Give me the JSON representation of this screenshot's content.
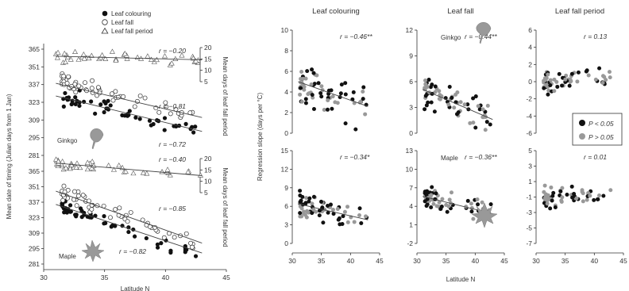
{
  "legend": [
    "Leaf colouring",
    "Leaf fall",
    "Leaf fall period"
  ],
  "sig_legend": [
    "P < 0.05",
    "P > 0.05"
  ],
  "chart_data": [
    {
      "type": "scatter",
      "panel": "left",
      "xlabel": "Latitude N",
      "ylabel": "Mean date of timing (Julian days from 1 Jan)",
      "ylabel_right": "Mean days of leaf fall period",
      "xlim": [
        30,
        45
      ],
      "xticks": [
        30,
        35,
        40,
        45
      ],
      "yticks_left": [
        281,
        295,
        309,
        323,
        337,
        351,
        365
      ],
      "yticks_right": [
        5,
        10,
        15,
        20
      ],
      "groups": [
        {
          "species": "Ginkgo",
          "r_labels": [
            {
              "series": "Leaf fall period",
              "text": "r = −0.20"
            },
            {
              "series": "Leaf fall",
              "text": "r = −0.81"
            },
            {
              "series": "Leaf colouring",
              "text": "r = −0.72"
            }
          ],
          "lines": {
            "Leaf fall period": [
              [
                31,
                16.2
              ],
              [
                43,
                14.6
              ]
            ],
            "Leaf fall": [
              [
                31,
                338
              ],
              [
                43,
                311
              ]
            ],
            "Leaf colouring": [
              [
                31,
                328
              ],
              [
                43,
                300
              ]
            ]
          },
          "series": [
            {
              "name": "Leaf colouring",
              "seed": 11,
              "n": 55,
              "x0": 31.5,
              "x1": 42.5,
              "y0": 328,
              "y1": 300,
              "spread": 7,
              "axis": "left"
            },
            {
              "name": "Leaf fall",
              "seed": 12,
              "n": 55,
              "x0": 31.5,
              "x1": 42.5,
              "y0": 340,
              "y1": 311,
              "spread": 6,
              "axis": "left"
            },
            {
              "name": "Leaf fall period",
              "seed": 13,
              "n": 45,
              "x0": 31,
              "x1": 43,
              "y0": 16.2,
              "y1": 14.6,
              "spread": 2.2,
              "axis": "right"
            }
          ]
        },
        {
          "species": "Maple",
          "r_labels": [
            {
              "series": "Leaf fall period",
              "text": "r = −0.40"
            },
            {
              "series": "Leaf fall",
              "text": "r = −0.85"
            },
            {
              "series": "Leaf colouring",
              "text": "r = −0.82"
            }
          ],
          "lines": {
            "Leaf fall period": [
              [
                31,
                18
              ],
              [
                43,
                12.5
              ]
            ],
            "Leaf fall": [
              [
                31,
                347
              ],
              [
                43,
                300
              ]
            ],
            "Leaf colouring": [
              [
                31,
                335
              ],
              [
                43,
                291
              ]
            ]
          },
          "series": [
            {
              "name": "Leaf colouring",
              "seed": 21,
              "n": 55,
              "x0": 31.5,
              "x1": 42.5,
              "y0": 333,
              "y1": 290,
              "spread": 6,
              "axis": "left"
            },
            {
              "name": "Leaf fall",
              "seed": 22,
              "n": 55,
              "x0": 31.5,
              "x1": 42.5,
              "y0": 346,
              "y1": 300,
              "spread": 6,
              "axis": "left"
            },
            {
              "name": "Leaf fall period",
              "seed": 23,
              "n": 45,
              "x0": 31,
              "x1": 43,
              "y0": 18,
              "y1": 12.5,
              "spread": 2.5,
              "axis": "right"
            }
          ]
        }
      ]
    },
    {
      "type": "scatter",
      "panel": "right-grid",
      "xlabel": "Latitude N",
      "ylabel": "Regression slope (days per °C)",
      "xlim": [
        30,
        45
      ],
      "xticks": [
        30,
        35,
        40,
        45
      ],
      "columns": [
        "Leaf colouring",
        "Leaf fall",
        "Leaf fall period"
      ],
      "rows": [
        "Ginkgo",
        "Maple"
      ],
      "panels": [
        {
          "row": 0,
          "col": 0,
          "ylim": [
            0,
            10
          ],
          "yticks": [
            0,
            2,
            4,
            6,
            8,
            10
          ],
          "r": "r = −0.46**",
          "line": [
            [
              31,
              5.0
            ],
            [
              43,
              2.6
            ]
          ],
          "seed": 31,
          "n": 70,
          "center": [
            4.8,
            2.6
          ],
          "spread": 1.8,
          "species_label": ""
        },
        {
          "row": 0,
          "col": 1,
          "ylim": [
            0,
            12
          ],
          "yticks": [
            0,
            3,
            6,
            9,
            12
          ],
          "r": "r = −0.44**",
          "line": [
            [
              31,
              5.1
            ],
            [
              43,
              1.6
            ]
          ],
          "seed": 32,
          "n": 70,
          "center": [
            5.0,
            1.6
          ],
          "spread": 1.8,
          "species_label": "Ginkgo"
        },
        {
          "row": 0,
          "col": 2,
          "ylim": [
            -6,
            6
          ],
          "yticks": [
            -6,
            -4,
            -2,
            0,
            2,
            4,
            6
          ],
          "r": "r = 0.13",
          "line": null,
          "seed": 33,
          "n": 65,
          "center": [
            0.0,
            0.5
          ],
          "spread": 1.3,
          "species_label": ""
        },
        {
          "row": 1,
          "col": 0,
          "ylim": [
            0,
            15
          ],
          "yticks": [
            0,
            3,
            6,
            9,
            12,
            15
          ],
          "r": "r = −0.34*",
          "line": [
            [
              31,
              6.4
            ],
            [
              43,
              3.8
            ]
          ],
          "seed": 41,
          "n": 70,
          "center": [
            6.2,
            4.0
          ],
          "spread": 2.0,
          "species_label": ""
        },
        {
          "row": 1,
          "col": 1,
          "ylim": [
            -2,
            13
          ],
          "yticks": [
            -2,
            1,
            4,
            7,
            10,
            13
          ],
          "r": "r = −0.36**",
          "line": [
            [
              31,
              5.6
            ],
            [
              43,
              2.8
            ]
          ],
          "seed": 42,
          "n": 70,
          "center": [
            5.4,
            2.8
          ],
          "spread": 1.9,
          "species_label": "Maple"
        },
        {
          "row": 1,
          "col": 2,
          "ylim": [
            -7,
            5
          ],
          "yticks": [
            -7,
            -5,
            -3,
            -1,
            1,
            3,
            5
          ],
          "r": "r = 0.01",
          "line": null,
          "seed": 43,
          "n": 60,
          "center": [
            -1.0,
            -1.0
          ],
          "spread": 1.3,
          "species_label": ""
        }
      ]
    }
  ]
}
